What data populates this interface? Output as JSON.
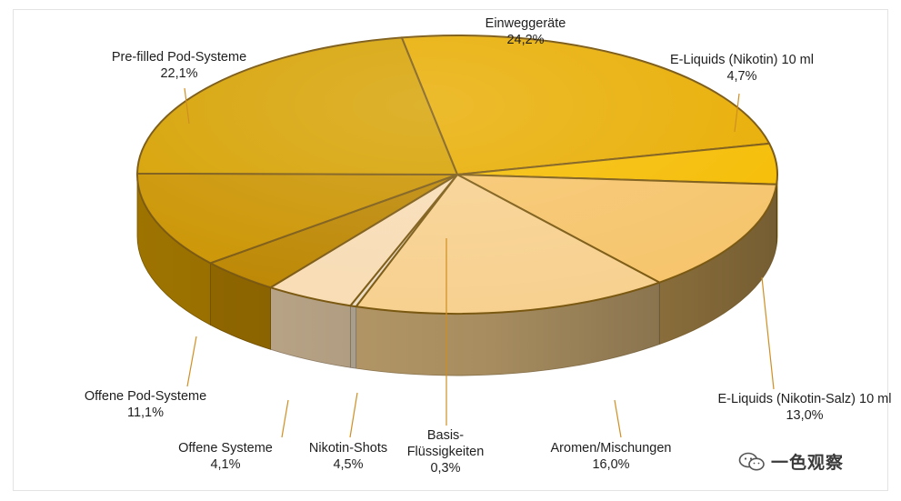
{
  "chart_data": {
    "type": "pie",
    "style": "3d",
    "slices": [
      {
        "label": "Einweggeräte",
        "value_label": "24,2%",
        "value": 24.2,
        "color": "#e8ad00"
      },
      {
        "label": "E-Liquids (Nikotin) 10 ml",
        "value_label": "4,7%",
        "value": 4.7,
        "color": "#f5bc00"
      },
      {
        "label": "E-Liquids (Nikotin-Salz) 10 ml",
        "value_label": "13,0%",
        "value": 13.0,
        "color": "#f6c46a"
      },
      {
        "label": "Aromen/Mischungen",
        "value_label": "16,0%",
        "value": 16.0,
        "color": "#f7d08e"
      },
      {
        "label": "Basis-Flüssigkeiten",
        "label_lines": [
          "Basis-",
          "Flüssigkeiten"
        ],
        "value_label": "0,3%",
        "value": 0.3,
        "color": "#ecdcc4"
      },
      {
        "label": "Nikotin-Shots",
        "value_label": "4,5%",
        "value": 4.5,
        "color": "#f8dcb4"
      },
      {
        "label": "Offene Systeme",
        "value_label": "4,1%",
        "value": 4.1,
        "color": "#bc8600"
      },
      {
        "label": "Offene Pod-Systeme",
        "value_label": "11,1%",
        "value": 11.1,
        "color": "#cb9400"
      },
      {
        "label": "Pre-filled Pod-Systeme",
        "value_label": "22,1%",
        "value": 22.1,
        "color": "#d6a100"
      }
    ]
  },
  "watermark": {
    "text": "一色观察"
  }
}
